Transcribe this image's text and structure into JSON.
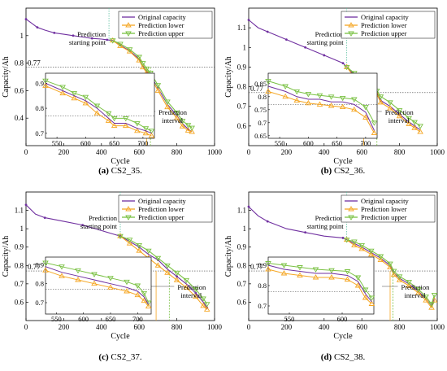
{
  "chart_data": [
    {
      "type": "line",
      "caption_letter": "(a)",
      "caption_text": "CS2_35.",
      "ylabel": "Capacity/Ah",
      "xlabel": "Cycle",
      "xlim": [
        0,
        1000
      ],
      "ylim": [
        0.2,
        1.2
      ],
      "xticks": [
        0,
        200,
        400,
        600,
        800,
        1000
      ],
      "yticks": [
        0.4,
        0.6,
        0.8,
        1
      ],
      "threshold": {
        "label": "0.77",
        "value": 0.77
      },
      "legend": [
        "Original capacity",
        "Prediction lower",
        "Prediction upper"
      ],
      "annotations": {
        "start": {
          "text": [
            "Prediction",
            "starting point"
          ],
          "x": 440
        },
        "interval": {
          "text": [
            "Prediction",
            "interval"
          ],
          "x_lower": 640,
          "x_upper": 660
        }
      },
      "series": [
        {
          "name": "Original capacity",
          "x": [
            0,
            30,
            60,
            100,
            150,
            200,
            250,
            300,
            350,
            400,
            430,
            460,
            500,
            550,
            600,
            620,
            640,
            660,
            700,
            750,
            800,
            830,
            860,
            880
          ],
          "y": [
            1.12,
            1.09,
            1.06,
            1.04,
            1.02,
            1.01,
            1.0,
            0.99,
            0.98,
            0.975,
            0.97,
            0.965,
            0.93,
            0.89,
            0.83,
            0.78,
            0.74,
            0.71,
            0.62,
            0.5,
            0.42,
            0.36,
            0.32,
            0.3
          ]
        },
        {
          "name": "Prediction lower",
          "x": [
            460,
            500,
            550,
            600,
            620,
            640,
            660,
            700,
            750,
            800,
            830,
            860,
            880
          ],
          "y": [
            0.965,
            0.925,
            0.885,
            0.82,
            0.77,
            0.73,
            0.7,
            0.6,
            0.48,
            0.4,
            0.34,
            0.31,
            0.3
          ]
        },
        {
          "name": "Prediction upper",
          "x": [
            460,
            500,
            550,
            600,
            620,
            640,
            660,
            700,
            750,
            800,
            830,
            860,
            880
          ],
          "y": [
            0.965,
            0.94,
            0.9,
            0.845,
            0.8,
            0.76,
            0.73,
            0.64,
            0.52,
            0.44,
            0.38,
            0.35,
            0.33
          ]
        }
      ],
      "inset": {
        "xlim": [
          530,
          720
        ],
        "ylim": [
          0.68,
          0.94
        ],
        "xticks": [
          550,
          600,
          650,
          700
        ],
        "yticks": [
          0.7,
          0.8,
          0.9
        ],
        "threshold": 0.77,
        "markers": [
          640,
          660
        ],
        "orig": {
          "x": [
            530,
            560,
            580,
            600,
            620,
            640,
            650,
            670,
            690,
            705,
            715
          ],
          "y": [
            0.9,
            0.87,
            0.85,
            0.83,
            0.8,
            0.76,
            0.74,
            0.74,
            0.72,
            0.71,
            0.7
          ]
        },
        "lower": {
          "x": [
            530,
            560,
            580,
            600,
            620,
            640,
            650,
            670,
            690,
            705,
            715
          ],
          "y": [
            0.89,
            0.86,
            0.84,
            0.82,
            0.78,
            0.75,
            0.73,
            0.73,
            0.71,
            0.7,
            0.69
          ]
        },
        "upper": {
          "x": [
            530,
            560,
            580,
            600,
            620,
            640,
            650,
            670,
            690,
            705,
            715
          ],
          "y": [
            0.91,
            0.885,
            0.86,
            0.845,
            0.81,
            0.78,
            0.76,
            0.76,
            0.74,
            0.72,
            0.71
          ]
        }
      }
    },
    {
      "type": "line",
      "caption_letter": "(b)",
      "caption_text": "CS2_36.",
      "ylabel": "Capacity/Ah",
      "xlabel": "Cycle",
      "xlim": [
        0,
        1000
      ],
      "ylim": [
        0.5,
        1.2
      ],
      "xticks": [
        0,
        200,
        400,
        600,
        800,
        1000
      ],
      "yticks": [
        0.6,
        0.7,
        0.8,
        0.9,
        1,
        1.1
      ],
      "threshold": {
        "label": "0.77",
        "value": 0.77
      },
      "legend": [
        "Original capacity",
        "Prediction lower",
        "Prediction upper"
      ],
      "annotations": {
        "start": {
          "text": [
            "Prediction",
            "starting point"
          ],
          "x": 520
        },
        "interval": {
          "text": [
            "Prediction",
            "interval"
          ],
          "x_lower": 610,
          "x_upper": 680
        }
      },
      "series": [
        {
          "name": "Original capacity",
          "x": [
            0,
            50,
            100,
            150,
            200,
            250,
            300,
            350,
            400,
            450,
            500,
            520,
            560,
            600,
            650,
            680,
            700,
            750,
            800,
            850,
            880,
            910
          ],
          "y": [
            1.14,
            1.1,
            1.08,
            1.06,
            1.04,
            1.02,
            1.0,
            0.98,
            0.96,
            0.94,
            0.92,
            0.9,
            0.86,
            0.82,
            0.79,
            0.77,
            0.73,
            0.7,
            0.66,
            0.62,
            0.6,
            0.58
          ]
        },
        {
          "name": "Prediction lower",
          "x": [
            520,
            560,
            600,
            650,
            680,
            700,
            750,
            800,
            850,
            880,
            910
          ],
          "y": [
            0.9,
            0.85,
            0.8,
            0.78,
            0.76,
            0.72,
            0.69,
            0.65,
            0.61,
            0.59,
            0.57
          ]
        },
        {
          "name": "Prediction upper",
          "x": [
            520,
            560,
            600,
            650,
            680,
            700,
            750,
            800,
            850,
            880,
            910
          ],
          "y": [
            0.9,
            0.87,
            0.83,
            0.8,
            0.78,
            0.75,
            0.72,
            0.68,
            0.64,
            0.62,
            0.6
          ]
        }
      ],
      "inset": {
        "xlim": [
          530,
          720
        ],
        "ylim": [
          0.64,
          0.89
        ],
        "xticks": [
          550,
          600,
          650,
          700
        ],
        "yticks": [
          0.65,
          0.7,
          0.75,
          0.8,
          0.85
        ],
        "threshold": 0.77,
        "markers": [
          610,
          680
        ],
        "orig": {
          "x": [
            530,
            560,
            580,
            600,
            620,
            640,
            660,
            680,
            700,
            715
          ],
          "y": [
            0.84,
            0.82,
            0.8,
            0.79,
            0.79,
            0.78,
            0.78,
            0.77,
            0.74,
            0.67
          ]
        },
        "lower": {
          "x": [
            530,
            560,
            580,
            600,
            620,
            640,
            660,
            680,
            700,
            715
          ],
          "y": [
            0.82,
            0.8,
            0.785,
            0.775,
            0.77,
            0.765,
            0.76,
            0.75,
            0.72,
            0.66
          ]
        },
        "upper": {
          "x": [
            530,
            560,
            580,
            600,
            620,
            640,
            660,
            680,
            700,
            715
          ],
          "y": [
            0.86,
            0.84,
            0.82,
            0.81,
            0.805,
            0.8,
            0.795,
            0.79,
            0.76,
            0.7
          ]
        }
      }
    },
    {
      "type": "line",
      "caption_letter": "(c)",
      "caption_text": "CS2_37.",
      "ylabel": "Capacity/Ah",
      "xlabel": "Cycle",
      "xlim": [
        0,
        1000
      ],
      "ylim": [
        0.5,
        1.2
      ],
      "xticks": [
        0,
        200,
        400,
        600,
        800,
        1000
      ],
      "yticks": [
        0.6,
        0.7,
        0.8,
        0.9,
        1,
        1.1
      ],
      "threshold": {
        "label": "0.77",
        "value": 0.77
      },
      "legend": [
        "Original capacity",
        "Prediction lower",
        "Prediction upper"
      ],
      "annotations": {
        "start": {
          "text": [
            "Prediction",
            "starting point"
          ],
          "x": 500
        },
        "interval": {
          "text": [
            "Prediction",
            "interval"
          ],
          "x_lower": 690,
          "x_upper": 760
        }
      },
      "series": [
        {
          "name": "Original capacity",
          "x": [
            0,
            50,
            100,
            200,
            300,
            400,
            500,
            550,
            600,
            650,
            700,
            750,
            800,
            850,
            900,
            940,
            960
          ],
          "y": [
            1.13,
            1.08,
            1.06,
            1.04,
            1.02,
            0.99,
            0.96,
            0.93,
            0.9,
            0.86,
            0.83,
            0.78,
            0.74,
            0.7,
            0.65,
            0.6,
            0.57
          ]
        },
        {
          "name": "Prediction lower",
          "x": [
            500,
            550,
            600,
            650,
            700,
            750,
            800,
            850,
            900,
            940,
            960
          ],
          "y": [
            0.96,
            0.92,
            0.88,
            0.84,
            0.8,
            0.76,
            0.72,
            0.68,
            0.63,
            0.58,
            0.56
          ]
        },
        {
          "name": "Prediction upper",
          "x": [
            500,
            550,
            600,
            650,
            700,
            750,
            800,
            850,
            900,
            940,
            960
          ],
          "y": [
            0.96,
            0.94,
            0.91,
            0.88,
            0.84,
            0.8,
            0.76,
            0.72,
            0.67,
            0.62,
            0.59
          ]
        }
      ],
      "inset": {
        "xlim": [
          530,
          725
        ],
        "ylim": [
          0.64,
          0.94
        ],
        "xticks": [
          550,
          600,
          650,
          700
        ],
        "yticks": [
          0.7,
          0.8,
          0.9
        ],
        "threshold": 0.77,
        "markers": [
          690,
          760
        ],
        "orig": {
          "x": [
            530,
            560,
            590,
            620,
            650,
            680,
            700,
            712,
            720
          ],
          "y": [
            0.89,
            0.86,
            0.84,
            0.82,
            0.8,
            0.78,
            0.76,
            0.73,
            0.69
          ]
        },
        "lower": {
          "x": [
            530,
            560,
            590,
            620,
            650,
            680,
            700,
            712,
            720
          ],
          "y": [
            0.87,
            0.84,
            0.82,
            0.8,
            0.78,
            0.76,
            0.74,
            0.71,
            0.68
          ]
        },
        "upper": {
          "x": [
            530,
            560,
            590,
            620,
            650,
            680,
            700,
            712,
            720
          ],
          "y": [
            0.91,
            0.89,
            0.87,
            0.85,
            0.83,
            0.81,
            0.79,
            0.75,
            0.7
          ]
        }
      }
    },
    {
      "type": "line",
      "caption_letter": "(d)",
      "caption_text": "CS2_38.",
      "ylabel": "Capacity/Ah",
      "xlabel": "Cycle",
      "xlim": [
        0,
        1000
      ],
      "ylim": [
        0.5,
        1.2
      ],
      "xticks": [
        0,
        200,
        400,
        600,
        800,
        1000
      ],
      "yticks": [
        0.6,
        0.7,
        0.8,
        0.9,
        1,
        1.1
      ],
      "threshold": {
        "label": "0.77",
        "value": 0.77
      },
      "legend": [
        "Original capacity",
        "Prediction lower",
        "Prediction upper"
      ],
      "annotations": {
        "start": {
          "text": [
            "Prediction",
            "starting point"
          ],
          "x": 520
        },
        "interval": {
          "text": [
            "Prediction",
            "interval"
          ],
          "x_lower": 750,
          "x_upper": 765
        }
      },
      "series": [
        {
          "name": "Original capacity",
          "x": [
            0,
            50,
            100,
            200,
            300,
            400,
            500,
            520,
            560,
            600,
            650,
            700,
            750,
            770,
            800,
            850,
            900,
            940,
            970,
            985
          ],
          "y": [
            1.12,
            1.07,
            1.04,
            1.0,
            0.98,
            0.96,
            0.95,
            0.94,
            0.92,
            0.9,
            0.87,
            0.84,
            0.8,
            0.76,
            0.73,
            0.7,
            0.66,
            0.62,
            0.58,
            0.62
          ]
        },
        {
          "name": "Prediction lower",
          "x": [
            520,
            560,
            600,
            650,
            700,
            750,
            770,
            800,
            850,
            900,
            940,
            970,
            985
          ],
          "y": [
            0.94,
            0.91,
            0.89,
            0.86,
            0.83,
            0.79,
            0.75,
            0.72,
            0.69,
            0.65,
            0.61,
            0.57,
            0.61
          ]
        },
        {
          "name": "Prediction upper",
          "x": [
            520,
            560,
            600,
            650,
            700,
            750,
            770,
            800,
            850,
            900,
            940,
            970,
            985
          ],
          "y": [
            0.94,
            0.93,
            0.91,
            0.88,
            0.85,
            0.81,
            0.77,
            0.74,
            0.71,
            0.67,
            0.63,
            0.59,
            0.64
          ]
        }
      ],
      "inset": {
        "xlim": [
          530,
          630
        ],
        "ylim": [
          0.66,
          0.94
        ],
        "xticks": [
          550,
          600
        ],
        "yticks": [
          0.7,
          0.8,
          0.9
        ],
        "threshold": 0.77,
        "markers": [
          750,
          765
        ],
        "orig": {
          "x": [
            530,
            545,
            560,
            575,
            590,
            605,
            615,
            622,
            628
          ],
          "y": [
            0.9,
            0.88,
            0.87,
            0.86,
            0.86,
            0.85,
            0.82,
            0.76,
            0.72
          ]
        },
        "lower": {
          "x": [
            530,
            545,
            560,
            575,
            590,
            605,
            615,
            622,
            628
          ],
          "y": [
            0.88,
            0.86,
            0.85,
            0.84,
            0.84,
            0.83,
            0.8,
            0.74,
            0.71
          ]
        },
        "upper": {
          "x": [
            530,
            545,
            560,
            575,
            590,
            605,
            615,
            622,
            628
          ],
          "y": [
            0.91,
            0.9,
            0.89,
            0.88,
            0.875,
            0.87,
            0.84,
            0.78,
            0.74
          ]
        }
      }
    }
  ],
  "colors": {
    "original": "#7030a0",
    "lower": "#f5a623",
    "upper": "#7ac143",
    "guide": "#808080",
    "start_line": "#5bc0a0"
  }
}
